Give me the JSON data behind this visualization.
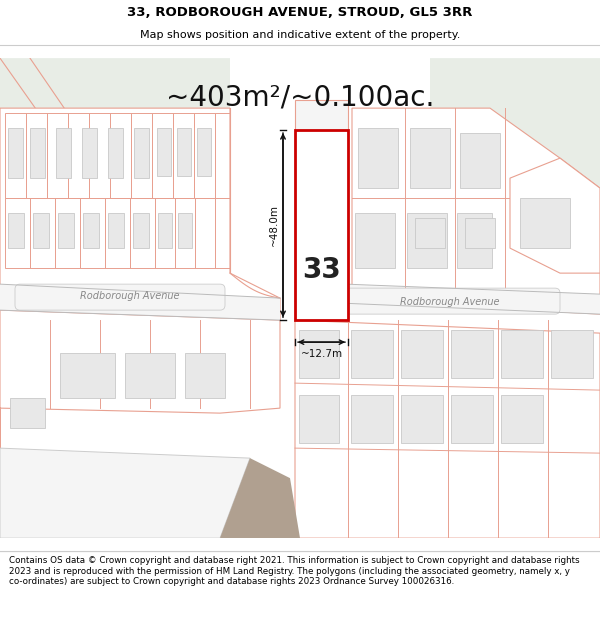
{
  "title_line1": "33, RODBOROUGH AVENUE, STROUD, GL5 3RR",
  "title_line2": "Map shows position and indicative extent of the property.",
  "area_text": "~403m²/~0.100ac.",
  "label_33": "33",
  "label_road_left": "Rodborough Avenue",
  "label_road_right": "Rodborough Avenue",
  "dim_height": "~48.0m",
  "dim_width": "~12.7m",
  "footer_text": "Contains OS data © Crown copyright and database right 2021. This information is subject to Crown copyright and database rights 2023 and is reproduced with the permission of HM Land Registry. The polygons (including the associated geometry, namely x, y co-ordinates) are subject to Crown copyright and database rights 2023 Ordnance Survey 100026316.",
  "bg_map_color": "#e8ede6",
  "bg_map_color2": "#dde5db",
  "building_fill": "#e8e8e8",
  "building_edge": "#c8c8c8",
  "plot_line_color": "#e8a090",
  "road_fill": "#f5f5f5",
  "road_edge": "#cccccc",
  "plot_edge_color": "#cc0000",
  "dim_color": "#111111",
  "title_bg": "#ffffff",
  "footer_bg": "#ffffff",
  "map_bg": "#f0f0f0"
}
